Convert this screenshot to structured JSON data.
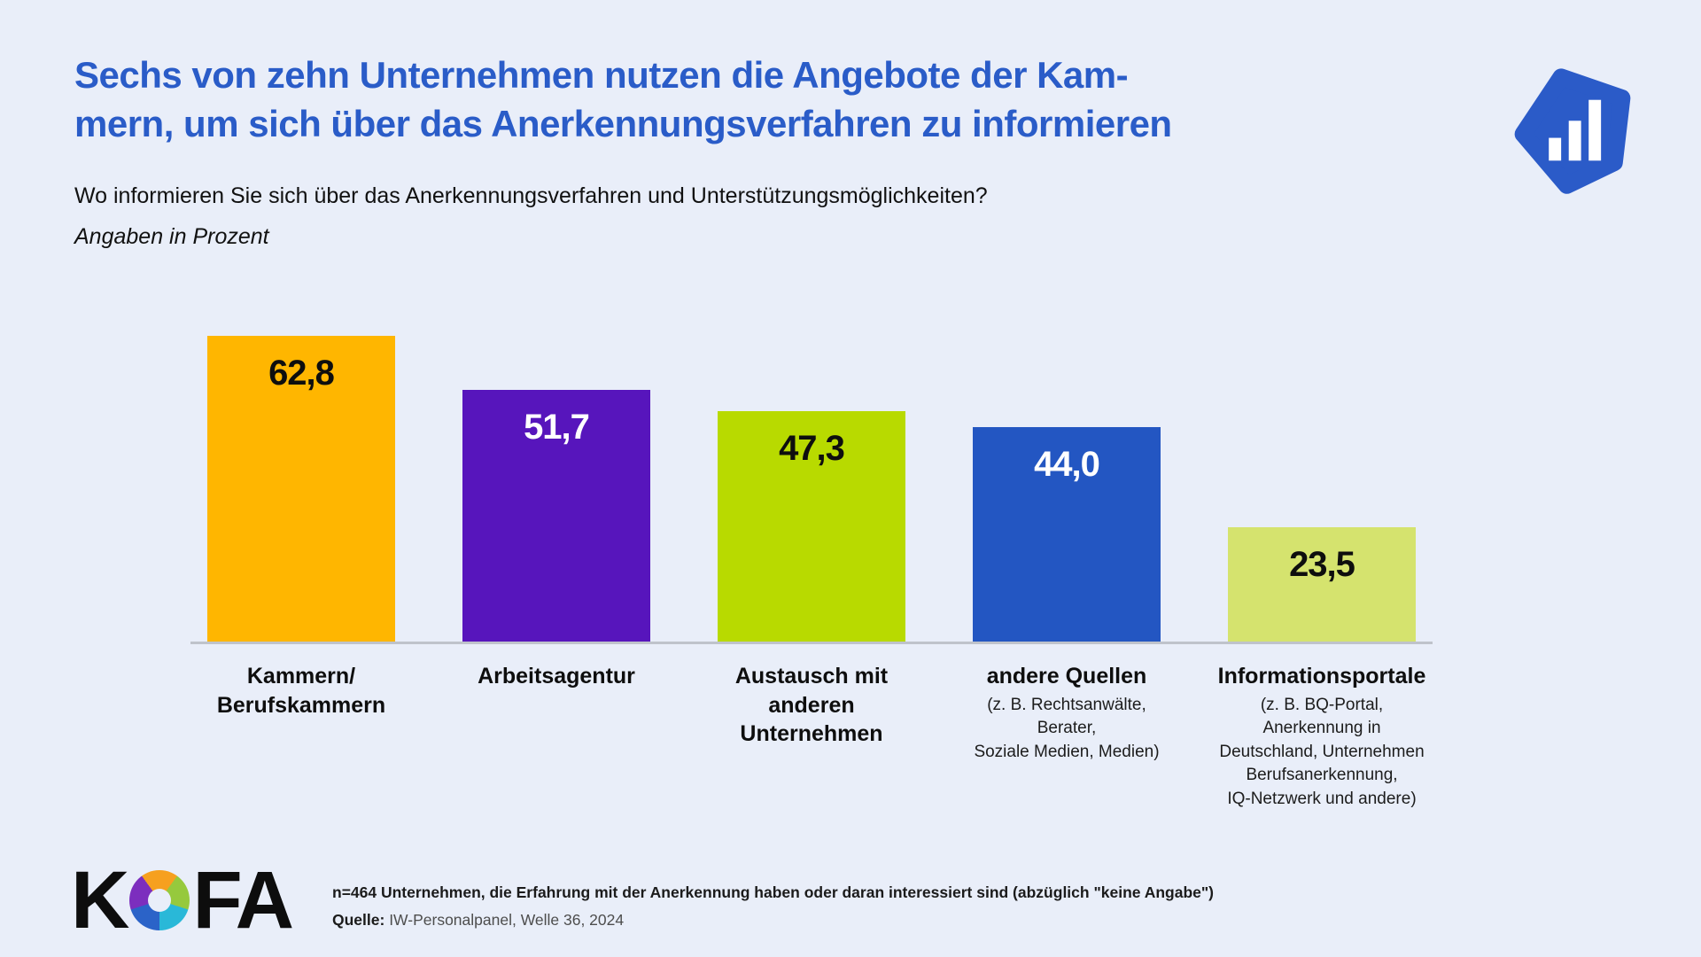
{
  "page": {
    "title": "Sechs von zehn Unternehmen nutzen die Angebote der Kam-\nmern, um sich über das Anerkennungsverfahren zu informieren",
    "title_color": "#2A5CC8",
    "subtitle": "Wo informieren Sie sich über das Anerkennungsverfahren und Unterstützungsmöglichkeiten?",
    "units_note": "Angaben in Prozent",
    "background_color": "#E9EEF9"
  },
  "chart_data": {
    "type": "bar",
    "title": "Sechs von zehn Unternehmen nutzen die Angebote der Kammern, um sich über das Anerkennungsverfahren zu informieren",
    "subtitle": "Wo informieren Sie sich über das Anerkennungsverfahren und Unterstützungsmöglichkeiten?",
    "units": "Angaben in Prozent",
    "categories": [
      "Kammern/Berufskammern",
      "Arbeitsagentur",
      "Austausch mit anderen Unternehmen",
      "andere Quellen",
      "Informationsportale"
    ],
    "values": [
      62.8,
      51.7,
      47.3,
      44.0,
      23.5
    ],
    "ylim": [
      0,
      70
    ],
    "grid": false,
    "legend": false,
    "bars": [
      {
        "label": "Kammern/\nBerufskammern",
        "sublabel": "",
        "value_label": "62,8",
        "color": "#FFB600",
        "value_text_color": "#0e0e0e"
      },
      {
        "label": "Arbeitsagentur",
        "sublabel": "",
        "value_label": "51,7",
        "color": "#5715BC",
        "value_text_color": "#FFFFFF"
      },
      {
        "label": "Austausch mit\nanderen Unternehmen",
        "sublabel": "",
        "value_label": "47,3",
        "color": "#B8DA00",
        "value_text_color": "#0e0e0e"
      },
      {
        "label": "andere Quellen",
        "sublabel": "(z. B. Rechtsanwälte, Berater,\nSoziale Medien, Medien)",
        "value_label": "44,0",
        "color": "#2356C2",
        "value_text_color": "#FFFFFF"
      },
      {
        "label": "Informationsportale",
        "sublabel": "(z. B. BQ-Portal, Anerkennung in\nDeutschland, Unternehmen\nBerufsanerkennung,\nIQ-Netzwerk und andere)",
        "value_label": "23,5",
        "color": "#D5E36E",
        "value_text_color": "#0e0e0e"
      }
    ]
  },
  "brand": {
    "icon_name": "bar-chart-pentagon-icon",
    "icon_color": "#2B5BC8"
  },
  "footer": {
    "logo_k": "K",
    "logo_fa": "FA",
    "note": "n=464 Unternehmen, die Erfahrung mit der Anerkennung haben oder daran interessiert sind (abzüglich \"keine Angabe\")",
    "source_label": "Quelle:",
    "source_text": " IW-Personalpanel, Welle 36, 2024"
  }
}
